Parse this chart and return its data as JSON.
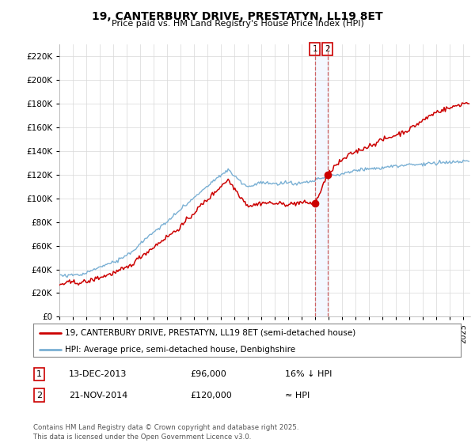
{
  "title": "19, CANTERBURY DRIVE, PRESTATYN, LL19 8ET",
  "subtitle": "Price paid vs. HM Land Registry's House Price Index (HPI)",
  "ylabel_ticks": [
    "£0",
    "£20K",
    "£40K",
    "£60K",
    "£80K",
    "£100K",
    "£120K",
    "£140K",
    "£160K",
    "£180K",
    "£200K",
    "£220K"
  ],
  "ytick_values": [
    0,
    20000,
    40000,
    60000,
    80000,
    100000,
    120000,
    140000,
    160000,
    180000,
    200000,
    220000
  ],
  "ylim": [
    0,
    230000
  ],
  "xlim_start": 1995.0,
  "xlim_end": 2025.5,
  "hpi_color": "#7ab0d4",
  "price_color": "#cc0000",
  "marker1_date": 2013.96,
  "marker1_price": 96000,
  "marker2_date": 2014.9,
  "marker2_price": 120000,
  "legend_line1": "19, CANTERBURY DRIVE, PRESTATYN, LL19 8ET (semi-detached house)",
  "legend_line2": "HPI: Average price, semi-detached house, Denbighshire",
  "annotation1_label": "1",
  "annotation1_date": "13-DEC-2013",
  "annotation1_price": "£96,000",
  "annotation1_hpi": "16% ↓ HPI",
  "annotation2_label": "2",
  "annotation2_date": "21-NOV-2014",
  "annotation2_price": "£120,000",
  "annotation2_hpi": "≈ HPI",
  "footer": "Contains HM Land Registry data © Crown copyright and database right 2025.\nThis data is licensed under the Open Government Licence v3.0.",
  "background_color": "#ffffff",
  "grid_color": "#d8d8d8"
}
